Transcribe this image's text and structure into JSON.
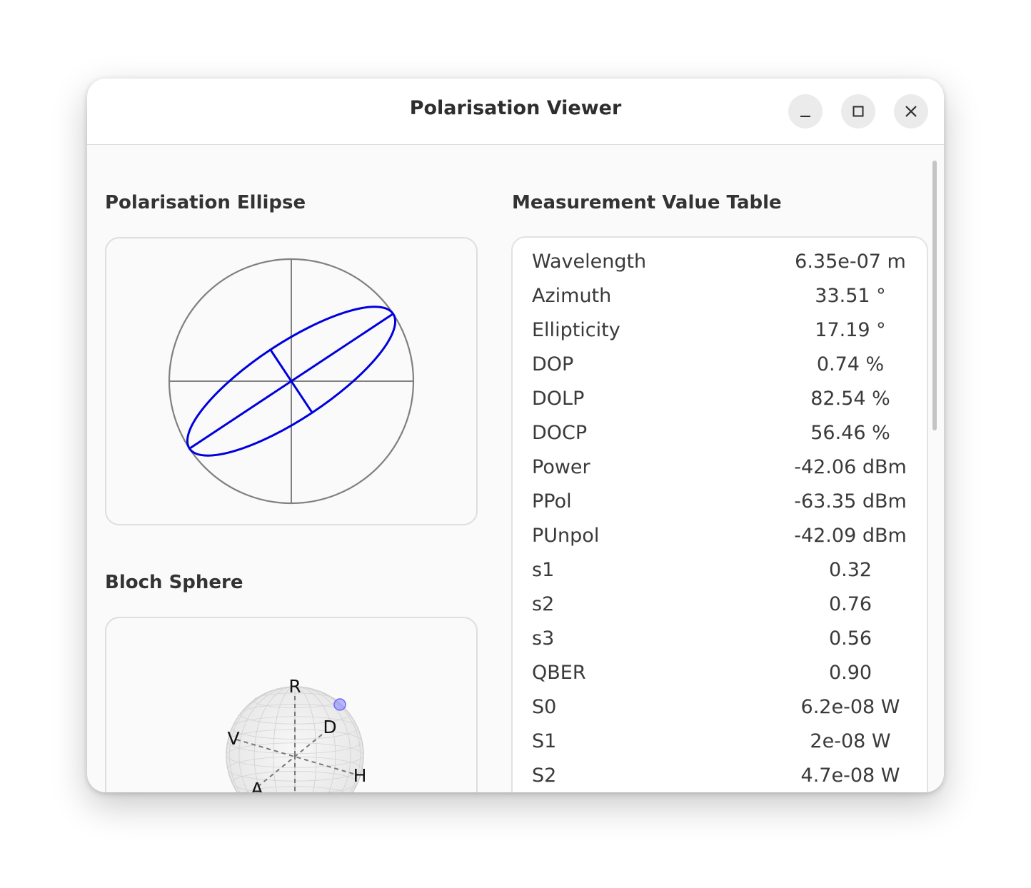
{
  "window": {
    "title": "Polarisation Viewer",
    "controls": [
      "minimize-icon",
      "maximize-icon",
      "close-icon"
    ]
  },
  "ellipse_panel": {
    "title": "Polarisation Ellipse",
    "azimuth_deg": 33.51,
    "ellipticity_deg": 17.19,
    "ellipse_color": "#0000dd",
    "axis_color": "#808080"
  },
  "bloch_panel": {
    "title": "Bloch Sphere",
    "labels": {
      "R": "R",
      "V": "V",
      "D": "D",
      "H": "H",
      "A": "A"
    },
    "point_color": "#8080ff"
  },
  "table": {
    "title": "Measurement Value Table",
    "rows": [
      {
        "label": "Wavelength",
        "value": "6.35e-07 m"
      },
      {
        "label": "Azimuth",
        "value": "33.51 °"
      },
      {
        "label": "Ellipticity",
        "value": "17.19 °"
      },
      {
        "label": "DOP",
        "value": "0.74 %"
      },
      {
        "label": "DOLP",
        "value": "82.54 %"
      },
      {
        "label": "DOCP",
        "value": "56.46 %"
      },
      {
        "label": "Power",
        "value": "-42.06 dBm"
      },
      {
        "label": "PPol",
        "value": "-63.35 dBm"
      },
      {
        "label": "PUnpol",
        "value": "-42.09 dBm"
      },
      {
        "label": "s1",
        "value": "0.32"
      },
      {
        "label": "s2",
        "value": "0.76"
      },
      {
        "label": "s3",
        "value": "0.56"
      },
      {
        "label": "QBER",
        "value": "0.90"
      },
      {
        "label": "S0",
        "value": "6.2e-08 W"
      },
      {
        "label": "S1",
        "value": "2e-08 W"
      },
      {
        "label": "S2",
        "value": "4.7e-08 W"
      }
    ]
  }
}
